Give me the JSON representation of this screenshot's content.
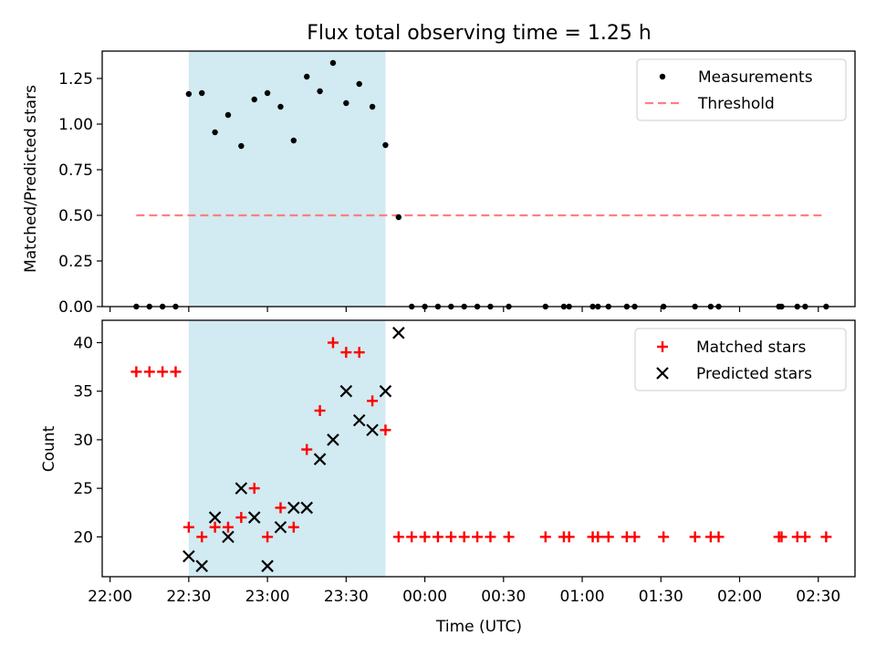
{
  "chart_data": [
    {
      "type": "scatter",
      "title": "Flux total observing time = 1.25 h",
      "xlabel": "",
      "ylabel": "Matched/Predicted stars",
      "ylim": [
        0,
        1.4
      ],
      "yticks": [
        0.0,
        0.25,
        0.5,
        0.75,
        1.0,
        1.25
      ],
      "ytick_labels": [
        "0.00",
        "0.25",
        "0.50",
        "0.75",
        "1.00",
        "1.25"
      ],
      "legend_position": "top-right",
      "highlight_span": {
        "start": "22:30",
        "end": "23:45",
        "color": "#add8e6"
      },
      "threshold": {
        "name": "Threshold",
        "value": 0.5,
        "start": "22:10",
        "end": "02:33",
        "color": "#ff7f7f"
      },
      "series": [
        {
          "name": "Measurements",
          "color": "#000000",
          "points": [
            [
              "22:10",
              0
            ],
            [
              "22:15",
              0
            ],
            [
              "22:20",
              0
            ],
            [
              "22:25",
              0
            ],
            [
              "22:30",
              1.165
            ],
            [
              "22:35",
              1.17
            ],
            [
              "22:40",
              0.955
            ],
            [
              "22:45",
              1.05
            ],
            [
              "22:50",
              0.88
            ],
            [
              "22:55",
              1.135
            ],
            [
              "23:00",
              1.17
            ],
            [
              "23:05",
              1.095
            ],
            [
              "23:10",
              0.91
            ],
            [
              "23:15",
              1.26
            ],
            [
              "23:20",
              1.18
            ],
            [
              "23:25",
              1.335
            ],
            [
              "23:30",
              1.115
            ],
            [
              "23:35",
              1.22
            ],
            [
              "23:40",
              1.095
            ],
            [
              "23:45",
              0.885
            ],
            [
              "23:50",
              0.49
            ],
            [
              "23:55",
              0
            ],
            [
              "00:00",
              0
            ],
            [
              "00:05",
              0
            ],
            [
              "00:10",
              0
            ],
            [
              "00:15",
              0
            ],
            [
              "00:20",
              0
            ],
            [
              "00:25",
              0
            ],
            [
              "00:32",
              0
            ],
            [
              "00:46",
              0
            ],
            [
              "00:53",
              0
            ],
            [
              "00:55",
              0
            ],
            [
              "01:04",
              0
            ],
            [
              "01:06",
              0
            ],
            [
              "01:10",
              0
            ],
            [
              "01:17",
              0
            ],
            [
              "01:20",
              0
            ],
            [
              "01:31",
              0
            ],
            [
              "01:43",
              0
            ],
            [
              "01:49",
              0
            ],
            [
              "01:52",
              0
            ],
            [
              "02:15",
              0
            ],
            [
              "02:16",
              0
            ],
            [
              "02:22",
              0
            ],
            [
              "02:25",
              0
            ],
            [
              "02:33",
              0
            ]
          ]
        }
      ]
    },
    {
      "type": "scatter",
      "title": "",
      "xlabel": "Time (UTC)",
      "ylabel": "Count",
      "ylim": [
        15.9,
        42.3
      ],
      "yticks": [
        20,
        25,
        30,
        35,
        40
      ],
      "xticks": [
        "22:00",
        "22:30",
        "23:00",
        "23:30",
        "00:00",
        "00:30",
        "01:00",
        "01:30",
        "02:00",
        "02:30"
      ],
      "xlim": [
        "21:57",
        "02:44"
      ],
      "legend_position": "top-right",
      "highlight_span": {
        "start": "22:30",
        "end": "23:45",
        "color": "#add8e6"
      },
      "series": [
        {
          "name": "Matched stars",
          "marker": "+",
          "color": "#ff0000",
          "points": [
            [
              "22:10",
              37
            ],
            [
              "22:15",
              37
            ],
            [
              "22:20",
              37
            ],
            [
              "22:25",
              37
            ],
            [
              "22:30",
              21
            ],
            [
              "22:35",
              20
            ],
            [
              "22:40",
              21
            ],
            [
              "22:45",
              21
            ],
            [
              "22:50",
              22
            ],
            [
              "22:55",
              25
            ],
            [
              "23:00",
              20
            ],
            [
              "23:05",
              23
            ],
            [
              "23:10",
              21
            ],
            [
              "23:15",
              29
            ],
            [
              "23:20",
              33
            ],
            [
              "23:25",
              40
            ],
            [
              "23:30",
              39
            ],
            [
              "23:35",
              39
            ],
            [
              "23:40",
              34
            ],
            [
              "23:45",
              31
            ],
            [
              "23:50",
              20
            ],
            [
              "23:55",
              20
            ],
            [
              "00:00",
              20
            ],
            [
              "00:05",
              20
            ],
            [
              "00:10",
              20
            ],
            [
              "00:15",
              20
            ],
            [
              "00:20",
              20
            ],
            [
              "00:25",
              20
            ],
            [
              "00:32",
              20
            ],
            [
              "00:46",
              20
            ],
            [
              "00:53",
              20
            ],
            [
              "00:55",
              20
            ],
            [
              "01:04",
              20
            ],
            [
              "01:06",
              20
            ],
            [
              "01:10",
              20
            ],
            [
              "01:17",
              20
            ],
            [
              "01:20",
              20
            ],
            [
              "01:31",
              20
            ],
            [
              "01:43",
              20
            ],
            [
              "01:49",
              20
            ],
            [
              "01:52",
              20
            ],
            [
              "02:15",
              20
            ],
            [
              "02:16",
              20
            ],
            [
              "02:22",
              20
            ],
            [
              "02:25",
              20
            ],
            [
              "02:33",
              20
            ]
          ]
        },
        {
          "name": "Predicted stars",
          "marker": "x",
          "color": "#000000",
          "points": [
            [
              "22:30",
              18
            ],
            [
              "22:35",
              17
            ],
            [
              "22:40",
              22
            ],
            [
              "22:45",
              20
            ],
            [
              "22:50",
              25
            ],
            [
              "22:55",
              22
            ],
            [
              "23:00",
              17
            ],
            [
              "23:05",
              21
            ],
            [
              "23:10",
              23
            ],
            [
              "23:15",
              23
            ],
            [
              "23:20",
              28
            ],
            [
              "23:25",
              30
            ],
            [
              "23:30",
              35
            ],
            [
              "23:35",
              32
            ],
            [
              "23:40",
              31
            ],
            [
              "23:45",
              35
            ],
            [
              "23:50",
              41
            ]
          ]
        }
      ]
    }
  ]
}
